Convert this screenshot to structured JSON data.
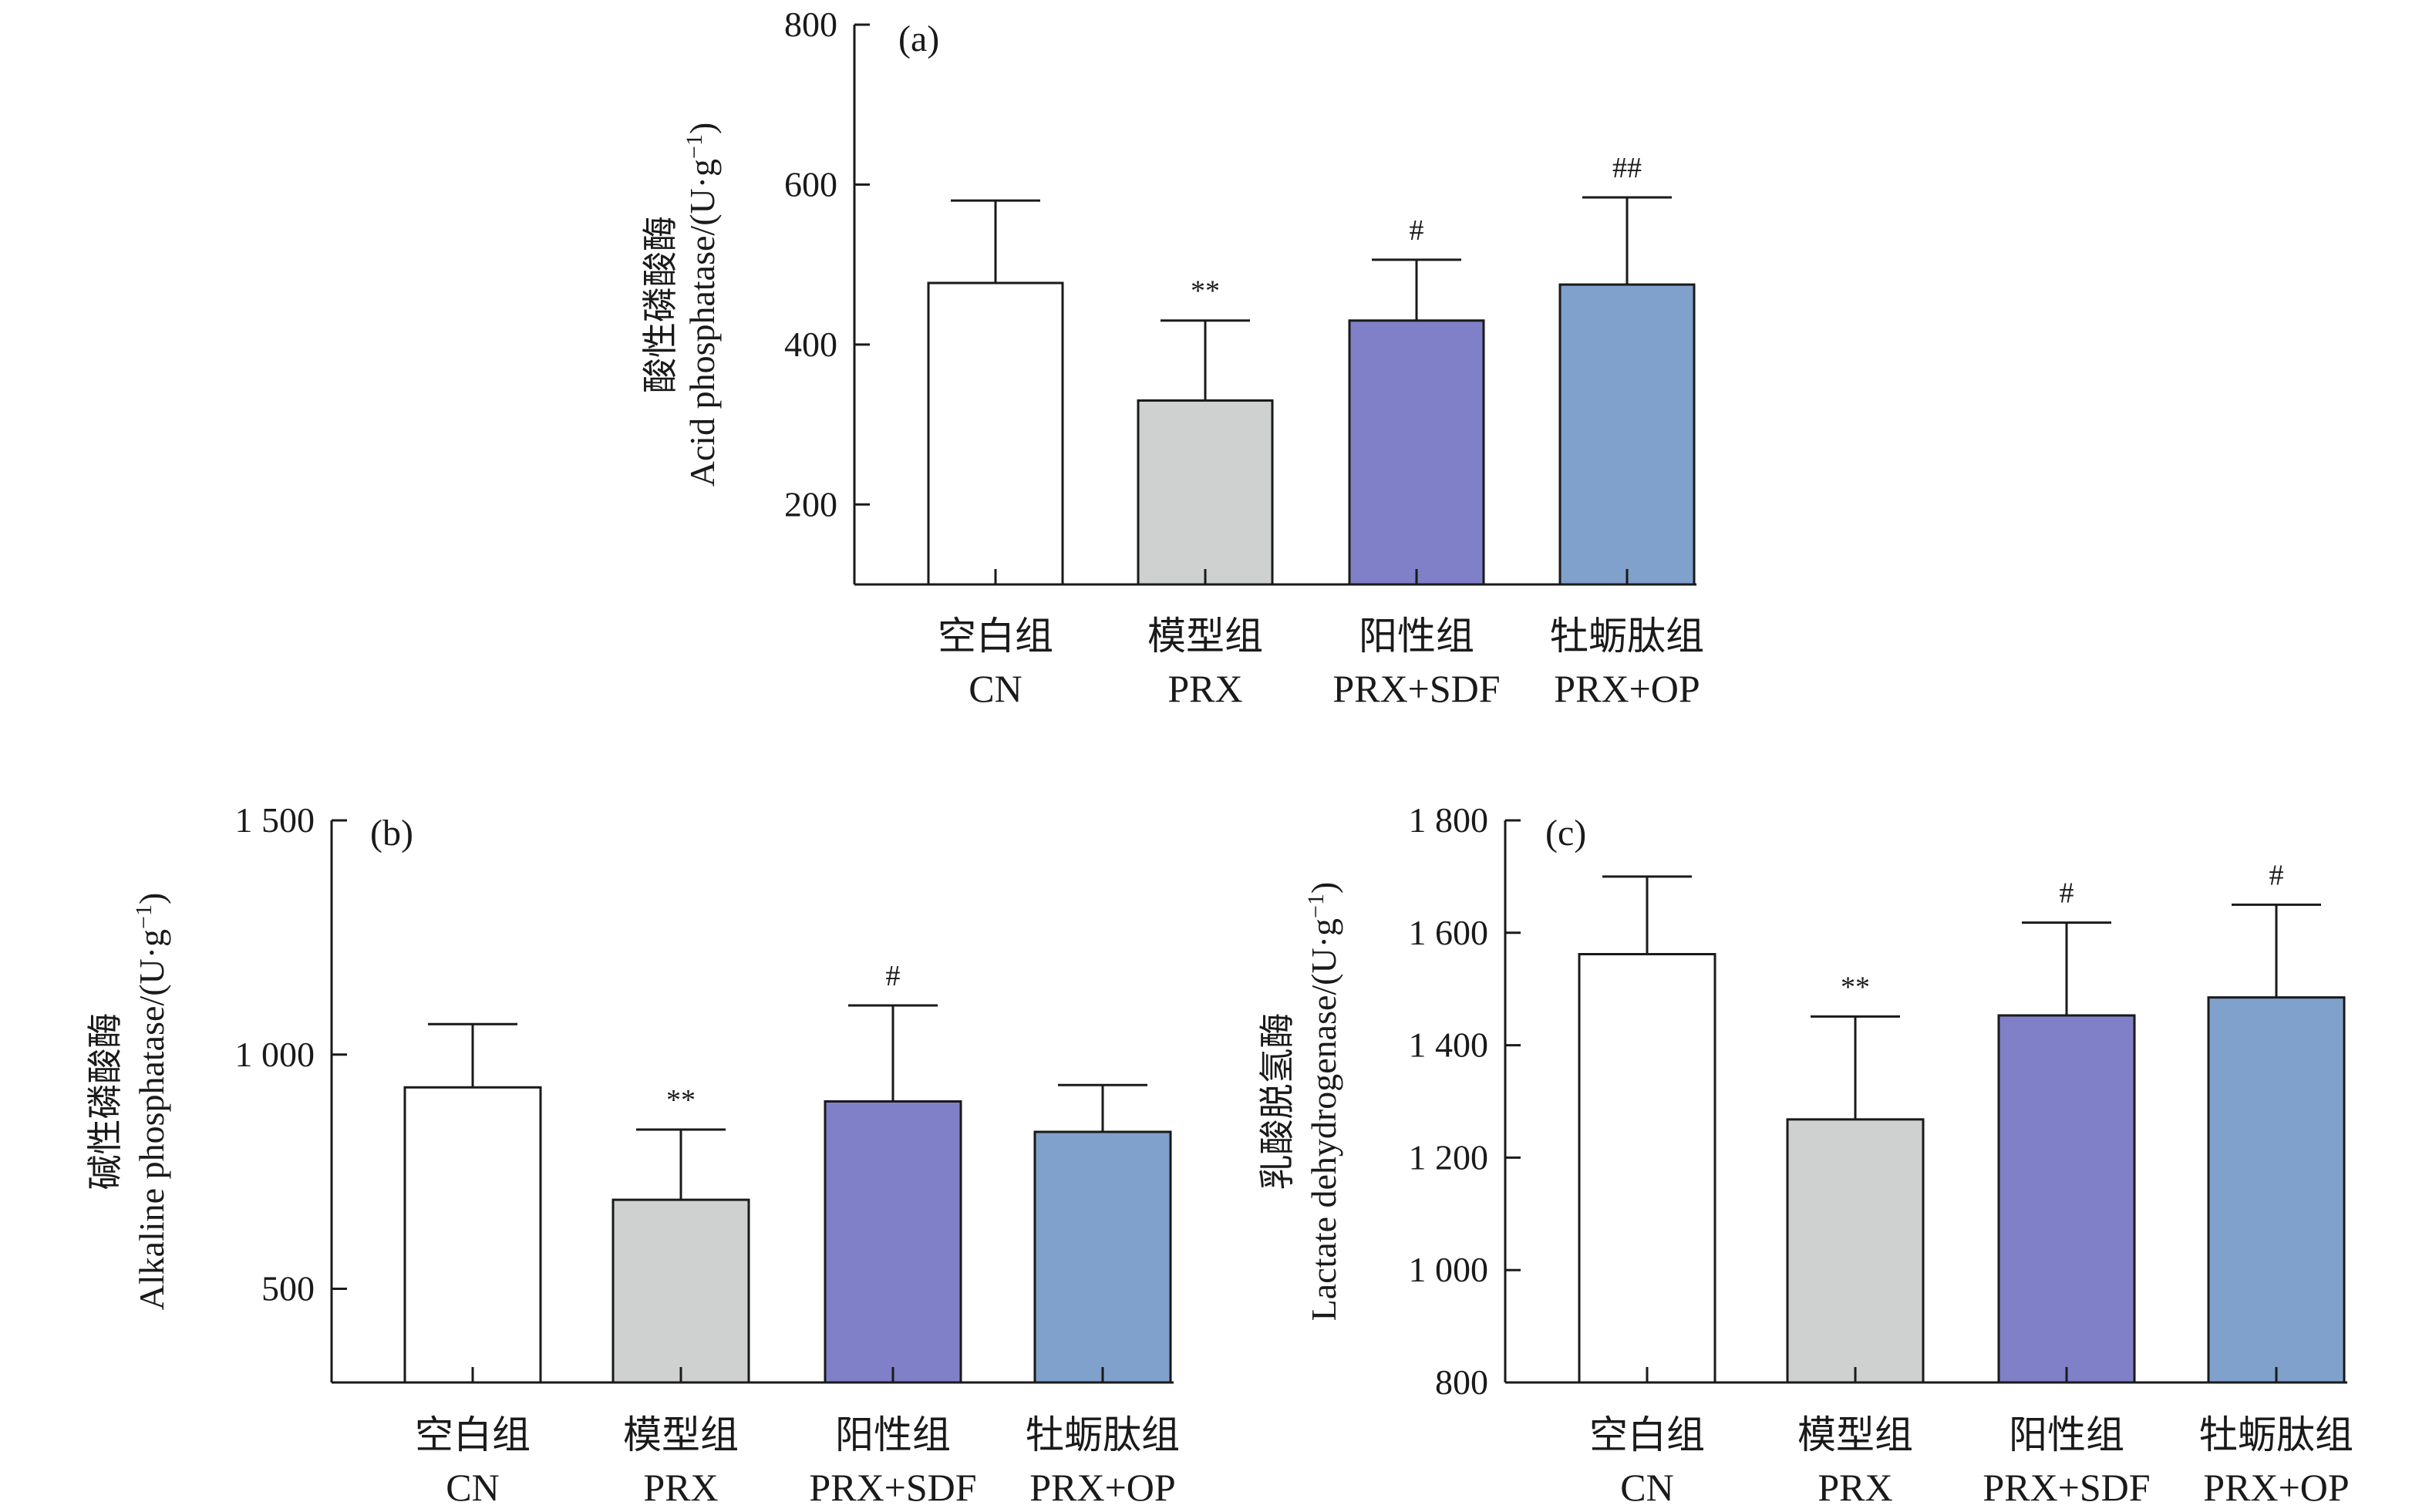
{
  "figure": {
    "colors": {
      "axis": "#1a1a1a",
      "bar_outline": "#1a1a1a",
      "bar_fills": [
        "#ffffff",
        "#cfd1d0",
        "#8080c8",
        "#7fa1cb"
      ]
    }
  },
  "chart_data": [
    {
      "type": "bar",
      "panel_label": "(a)",
      "ylabel_line1": "酸性磷酸酶",
      "ylabel_line2": "Acid phosphatase/(U·g",
      "ylabel_sup": "−1",
      "ylabel_end": ")",
      "categories_cn": [
        "空白组",
        "模型组",
        "阳性组",
        "牡蛎肽组"
      ],
      "categories": [
        "CN",
        "PRX",
        "PRX+SDF",
        "PRX+OP"
      ],
      "values": [
        477,
        330,
        430,
        475
      ],
      "errors": [
        103,
        100,
        76,
        109
      ],
      "significance": [
        "",
        "**",
        "#",
        "##"
      ],
      "ylim": [
        100,
        800
      ],
      "yticks": [
        200,
        400,
        600,
        800
      ],
      "ytick_labels": [
        "200",
        "400",
        "600",
        "800"
      ],
      "grid": false,
      "legend": "none"
    },
    {
      "type": "bar",
      "panel_label": "(b)",
      "ylabel_line1": "碱性磷酸酶",
      "ylabel_line2": "Alkaline phosphatase/(U·g",
      "ylabel_sup": "−1",
      "ylabel_end": ")",
      "categories_cn": [
        "空白组",
        "模型组",
        "阳性组",
        "牡蛎肽组"
      ],
      "categories": [
        "CN",
        "PRX",
        "PRX+SDF",
        "PRX+OP"
      ],
      "values": [
        930,
        690,
        900,
        835
      ],
      "errors": [
        135,
        150,
        205,
        100
      ],
      "significance": [
        "",
        "**",
        "#",
        ""
      ],
      "ylim": [
        300,
        1500
      ],
      "yticks": [
        500,
        1000,
        1500
      ],
      "ytick_labels": [
        "500",
        "1 000",
        "1 500"
      ],
      "grid": false,
      "legend": "none"
    },
    {
      "type": "bar",
      "panel_label": "(c)",
      "ylabel_line1": "乳酸脱氢酶",
      "ylabel_line2": "Lactate dehydrogenase/(U·g",
      "ylabel_sup": "−1",
      "ylabel_end": ")",
      "categories_cn": [
        "空白组",
        "模型组",
        "阳性组",
        "牡蛎肽组"
      ],
      "categories": [
        "CN",
        "PRX",
        "PRX+SDF",
        "PRX+OP"
      ],
      "values": [
        1562,
        1268,
        1453,
        1485
      ],
      "errors": [
        138,
        183,
        165,
        165
      ],
      "significance": [
        "",
        "**",
        "#",
        "#"
      ],
      "ylim": [
        800,
        1800
      ],
      "yticks": [
        800,
        1000,
        1200,
        1400,
        1600,
        1800
      ],
      "ytick_labels": [
        "800",
        "1 000",
        "1 200",
        "1 400",
        "1 600",
        "1 800"
      ],
      "grid": false,
      "legend": "none"
    }
  ]
}
